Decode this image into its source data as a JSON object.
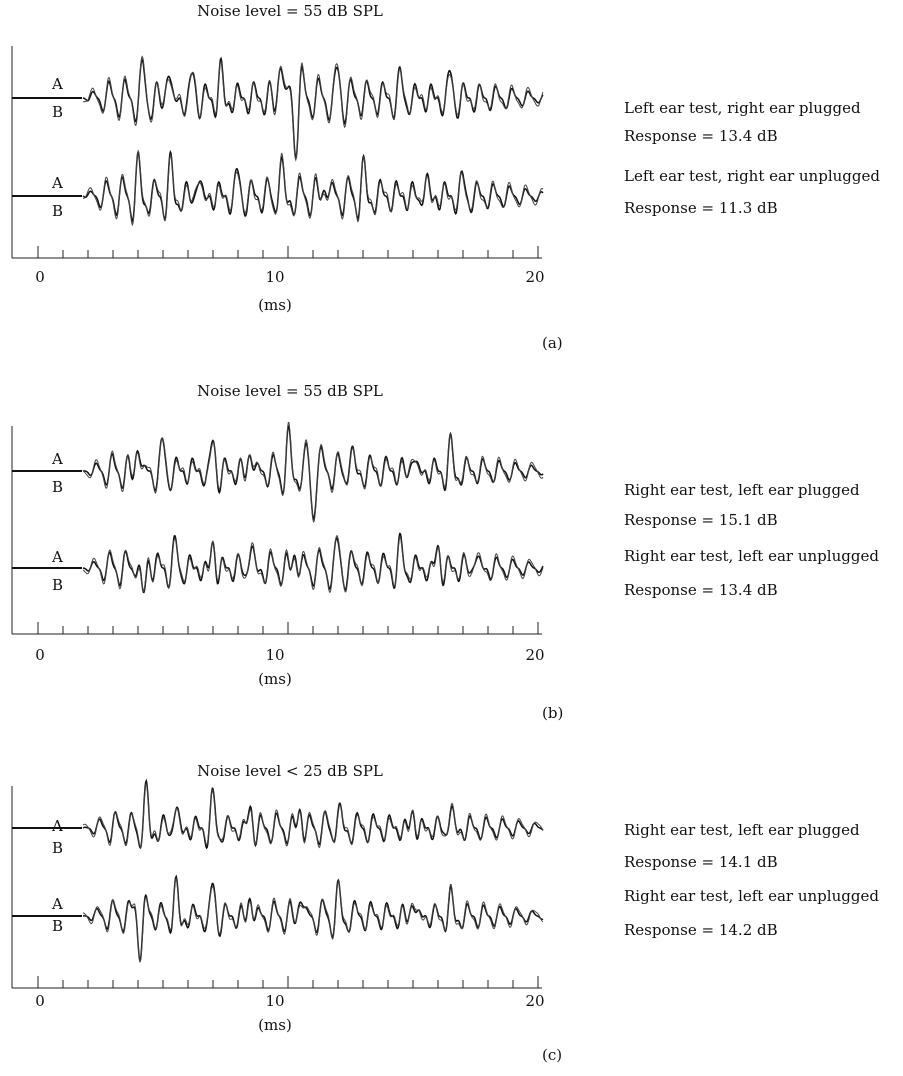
{
  "chart_data": [
    {
      "type": "line",
      "panel_label": "(a)",
      "title": "Noise level = 55 dB SPL",
      "xlabel": "(ms)",
      "xlim": [
        0,
        20
      ],
      "xticks": [
        0,
        10,
        20
      ],
      "trace_labels": [
        "A",
        "B"
      ],
      "annotations": [
        {
          "condition": "Left ear test, right ear plugged",
          "response": "Response = 13.4 dB"
        },
        {
          "condition": "Left ear test, right ear unplugged",
          "response": "Response = 11.3 dB"
        }
      ],
      "series": [
        {
          "peaks": [
            [
              4.2,
              0.55
            ],
            [
              5.2,
              0.75
            ],
            [
              6.2,
              0.5
            ],
            [
              7.3,
              0.55
            ],
            [
              9.7,
              1.0
            ],
            [
              10.3,
              -0.9
            ],
            [
              12.0,
              0.5
            ],
            [
              14.5,
              0.4
            ],
            [
              16.5,
              0.5
            ]
          ]
        },
        {
          "peaks": [
            [
              4.0,
              0.55
            ],
            [
              5.3,
              0.6
            ],
            [
              6.4,
              0.5
            ],
            [
              8.0,
              0.45
            ],
            [
              9.7,
              0.7
            ],
            [
              11.5,
              0.45
            ],
            [
              13.0,
              0.5
            ],
            [
              15.5,
              0.35
            ],
            [
              17.0,
              0.3
            ]
          ]
        }
      ]
    },
    {
      "type": "line",
      "panel_label": "(b)",
      "title": "Noise level = 55 dB SPL",
      "xlabel": "(ms)",
      "xlim": [
        0,
        20
      ],
      "xticks": [
        0,
        10,
        20
      ],
      "trace_labels": [
        "A",
        "B"
      ],
      "annotations": [
        {
          "condition": "Right ear test, left ear plugged",
          "response": "Response = 15.1 dB"
        },
        {
          "condition": "Right ear test, left ear unplugged",
          "response": "Response = 13.4 dB"
        }
      ],
      "series": [
        {
          "peaks": [
            [
              4.0,
              0.8
            ],
            [
              5.0,
              0.6
            ],
            [
              7.0,
              0.7
            ],
            [
              8.5,
              0.6
            ],
            [
              10.0,
              0.7
            ],
            [
              11.0,
              -0.9
            ],
            [
              12.5,
              0.45
            ],
            [
              15.0,
              0.5
            ],
            [
              16.5,
              0.55
            ]
          ]
        },
        {
          "peaks": [
            [
              4.2,
              -0.8
            ],
            [
              5.5,
              0.5
            ],
            [
              7.0,
              0.6
            ],
            [
              8.5,
              0.55
            ],
            [
              10.3,
              0.5
            ],
            [
              12.0,
              0.45
            ],
            [
              14.5,
              0.5
            ],
            [
              16.0,
              0.5
            ],
            [
              17.5,
              0.4
            ]
          ]
        }
      ]
    },
    {
      "type": "line",
      "panel_label": "(c)",
      "title": "Noise level < 25 dB SPL",
      "xlabel": "(ms)",
      "xlim": [
        0,
        20
      ],
      "xticks": [
        0,
        10,
        20
      ],
      "trace_labels": [
        "A",
        "B"
      ],
      "annotations": [
        {
          "condition": "Right ear test, left ear plugged",
          "response": "Response = 14.1 dB"
        },
        {
          "condition": "Right ear test, left ear unplugged",
          "response": "Response = 14.2 dB"
        }
      ],
      "series": [
        {
          "peaks": [
            [
              4.3,
              0.95
            ],
            [
              5.5,
              0.65
            ],
            [
              7.0,
              0.75
            ],
            [
              8.5,
              0.55
            ],
            [
              10.5,
              0.6
            ],
            [
              12.0,
              0.45
            ],
            [
              15.0,
              0.45
            ],
            [
              16.5,
              0.5
            ]
          ]
        },
        {
          "peaks": [
            [
              4.1,
              -0.8
            ],
            [
              5.5,
              0.75
            ],
            [
              7.0,
              0.8
            ],
            [
              8.5,
              0.6
            ],
            [
              10.5,
              0.75
            ],
            [
              12.0,
              0.5
            ],
            [
              15.0,
              0.5
            ],
            [
              16.5,
              0.45
            ]
          ]
        }
      ]
    }
  ]
}
